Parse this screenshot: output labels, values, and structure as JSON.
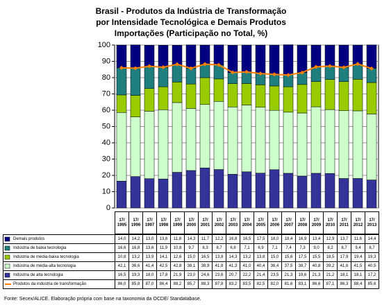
{
  "chart_data": {
    "type": "stacked-bar-line",
    "title": [
      "Brasil - Produtos da Indústria de Transformação",
      "por Intensidade Tecnológica e Demais Produtos",
      "Importações (Participação no Total, %)"
    ],
    "categories": [
      "17/ 1995",
      "17/ 1996",
      "17/ 1997",
      "17/ 1998",
      "17/ 1999",
      "17/ 2000",
      "17/ 2001",
      "17/ 2002",
      "17/ 2003",
      "17/ 2004",
      "17/ 2005",
      "17/ 2006",
      "17/ 2007",
      "17/ 2008",
      "17/ 2009",
      "17/ 2010",
      "17/ 2011",
      "17/ 2012",
      "17/ 2013"
    ],
    "ylim": [
      0,
      100
    ],
    "yticks": [
      0,
      10,
      20,
      30,
      40,
      50,
      60,
      70,
      80,
      90,
      100
    ],
    "grid": true,
    "series": [
      {
        "name": "Demais produtos",
        "color": "#000080",
        "kind": "bar",
        "values": [
          14.0,
          14.2,
          13.0,
          13.6,
          11.8,
          14.3,
          11.7,
          12.2,
          16.8,
          16.5,
          17.5,
          18.0,
          18.4,
          16.9,
          13.4,
          12.9,
          13.7,
          11.6,
          14.4
        ],
        "value_labels": [
          "14,0",
          "14,2",
          "13,0",
          "13,6",
          "11,8",
          "14,3",
          "11,7",
          "12,2",
          "16,8",
          "16,5",
          "17,5",
          "18,0",
          "18,4",
          "16,9",
          "13,4",
          "12,9",
          "13,7",
          "11,6",
          "14,4"
        ]
      },
      {
        "name": "Indústria de baixa tecnologia",
        "color": "#1f7f7f",
        "kind": "bar",
        "values": [
          16.6,
          16.8,
          13.6,
          11.9,
          10.8,
          9.7,
          8.3,
          8.7,
          6.8,
          7.1,
          6.9,
          7.1,
          7.4,
          7.3,
          9.0,
          8.2,
          8.7,
          9.4,
          8.7
        ],
        "value_labels": [
          "16,6",
          "16,8",
          "13,6",
          "11,9",
          "10,8",
          "9,7",
          "8,3",
          "8,7",
          "6,8",
          "7,1",
          "6,9",
          "7,1",
          "7,4",
          "7,3",
          "9,0",
          "8,2",
          "8,7",
          "9,4",
          "8,7"
        ]
      },
      {
        "name": "Indústria de média-baixa tecnologia",
        "color": "#99cc00",
        "kind": "bar",
        "values": [
          10.8,
          13.2,
          13.9,
          14.1,
          12.6,
          15.0,
          16.5,
          13.8,
          14.3,
          13.2,
          13.8,
          15.0,
          15.6,
          17.5,
          15.5,
          18.5,
          17.9,
          19.4,
          19.3
        ],
        "value_labels": [
          "10,8",
          "13,2",
          "13,9",
          "14,1",
          "12,6",
          "15,0",
          "16,5",
          "13,8",
          "14,3",
          "13,2",
          "13,8",
          "15,0",
          "15,6",
          "17,5",
          "15,5",
          "18,5",
          "17,9",
          "19,4",
          "19,3"
        ]
      },
      {
        "name": "Indústria de média-alta tecnologia",
        "color": "#ccffcc",
        "kind": "bar",
        "values": [
          42.1,
          36.6,
          41.4,
          42.5,
          42.8,
          38.1,
          38.9,
          41.8,
          41.3,
          41.0,
          40.4,
          36.4,
          37.5,
          38.7,
          40.8,
          39.2,
          41.6,
          41.5,
          40.5
        ],
        "value_labels": [
          "42,1",
          "36,6",
          "41,4",
          "42,5",
          "42,8",
          "38,1",
          "38,9",
          "41,8",
          "41,3",
          "41,0",
          "40,4",
          "36,4",
          "37,5",
          "38,7",
          "40,8",
          "39,2",
          "41,6",
          "41,5",
          "40,5"
        ]
      },
      {
        "name": "Indústria de alta tecnologia",
        "color": "#333399",
        "kind": "bar",
        "values": [
          16.5,
          19.3,
          18.0,
          17.8,
          21.9,
          23.0,
          24.6,
          23.6,
          20.7,
          22.2,
          21.4,
          23.5,
          21.3,
          19.6,
          21.3,
          21.2,
          18.1,
          18.1,
          17.2
        ],
        "value_labels": [
          "16,5",
          "19,3",
          "18,0",
          "17,8",
          "21,9",
          "23,0",
          "24,6",
          "23,6",
          "20,7",
          "22,2",
          "21,4",
          "23,5",
          "21,3",
          "19,6",
          "21,3",
          "21,2",
          "18,1",
          "18,1",
          "17,2"
        ]
      },
      {
        "name": "Produtos da indústria de transformação",
        "color": "#ff8000",
        "kind": "line",
        "values": [
          86.0,
          85.8,
          87.0,
          86.4,
          88.2,
          85.7,
          88.3,
          87.8,
          83.2,
          83.5,
          82.5,
          82.0,
          81.6,
          83.1,
          86.6,
          87.1,
          86.3,
          88.4,
          85.6
        ],
        "value_labels": [
          "86,0",
          "85,8",
          "87,0",
          "86,4",
          "88,2",
          "85,7",
          "88,3",
          "87,8",
          "83,2",
          "83,5",
          "82,5",
          "82,0",
          "81,6",
          "83,1",
          "86,6",
          "87,1",
          "86,3",
          "88,4",
          "85,6"
        ]
      }
    ],
    "source": "Fonte: Secex/ALICE. Elaboração própria com base na taxonomia da OCDE/ Standatabase."
  }
}
